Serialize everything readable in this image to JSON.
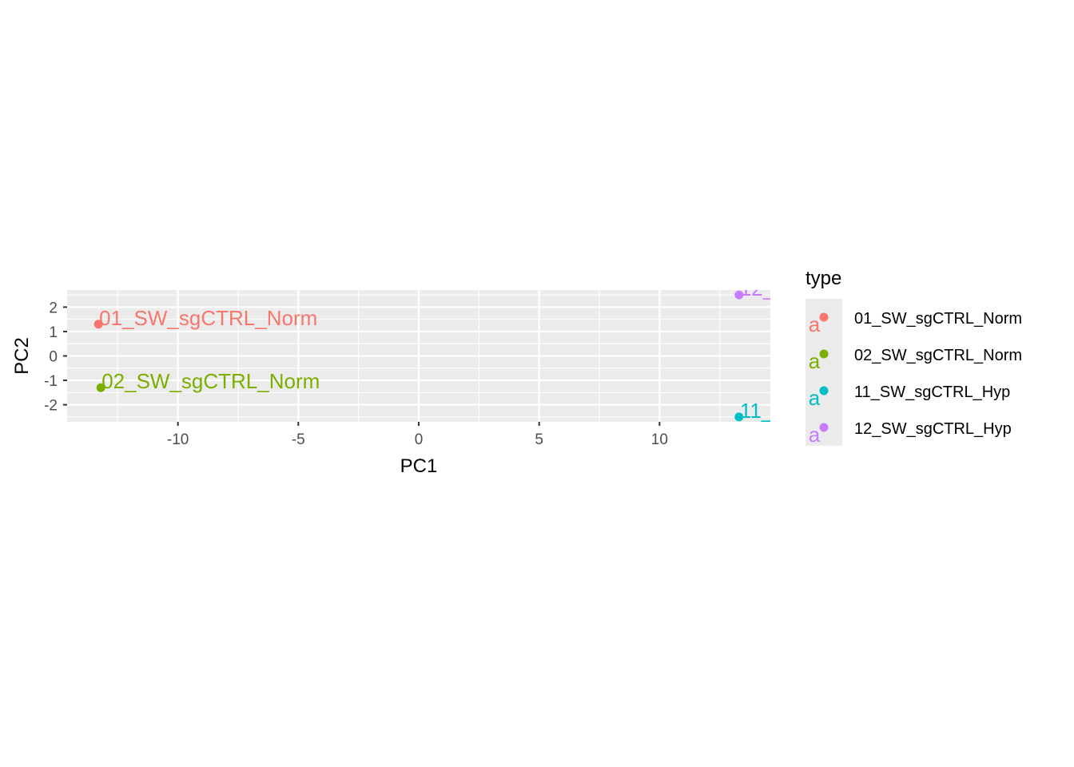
{
  "chart_data": {
    "type": "scatter",
    "xlabel": "PC1",
    "ylabel": "PC2",
    "xlim": [
      -14.6,
      14.6
    ],
    "ylim": [
      -2.7,
      2.7
    ],
    "xticks": [
      -10,
      -5,
      0,
      5,
      10
    ],
    "yticks": [
      -2,
      -1,
      0,
      1,
      2
    ],
    "grid": true,
    "legend": {
      "title": "type",
      "position": "right"
    },
    "points": [
      {
        "name": "01_SW_sgCTRL_Norm",
        "x": -13.3,
        "y": 1.3,
        "color": "#F8766D"
      },
      {
        "name": "02_SW_sgCTRL_Norm",
        "x": -13.2,
        "y": -1.3,
        "color": "#7CAE00"
      },
      {
        "name": "11_SW_sgCTRL_Hyp",
        "x": 13.3,
        "y": -2.5,
        "color": "#00BFC4"
      },
      {
        "name": "12_SW_sgCTRL_Hyp",
        "x": 13.3,
        "y": 2.5,
        "color": "#C77CFF"
      }
    ]
  },
  "legend_key_glyph": "a"
}
